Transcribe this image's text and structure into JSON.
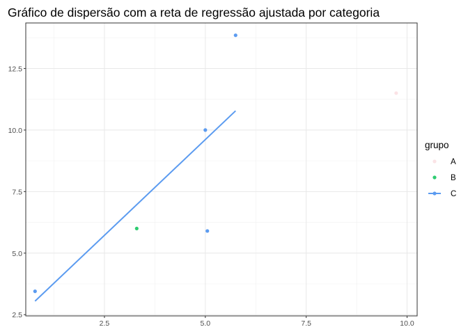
{
  "chart_data": {
    "type": "scatter",
    "title": "Gráfico de dispersão com a reta de regressão ajustada por categoria",
    "xlabel": "",
    "ylabel": "",
    "xlim": [
      0.55,
      10.25
    ],
    "ylim": [
      2.45,
      14.35
    ],
    "x_ticks": [
      2.5,
      5.0,
      7.5,
      10.0
    ],
    "x_tick_labels": [
      "2.5",
      "5.0",
      "7.5",
      "10.0"
    ],
    "y_ticks": [
      2.5,
      5.0,
      7.5,
      10.0,
      12.5
    ],
    "y_tick_labels": [
      "2.5",
      "5.0",
      "7.5",
      "10.0",
      "12.5"
    ],
    "grid": true,
    "legend": {
      "title": "grupo",
      "position": "right"
    },
    "series": [
      {
        "name": "A",
        "color": "#fbe3e6",
        "points": [
          {
            "x": 9.73,
            "y": 11.5
          }
        ],
        "fit": null
      },
      {
        "name": "B",
        "color": "#2ecc71",
        "points": [
          {
            "x": 3.3,
            "y": 6.0
          }
        ],
        "fit": null
      },
      {
        "name": "C",
        "color": "#5b9bf0",
        "points": [
          {
            "x": 0.78,
            "y": 3.45
          },
          {
            "x": 5.0,
            "y": 10.0
          },
          {
            "x": 5.05,
            "y": 5.9
          },
          {
            "x": 5.75,
            "y": 13.85
          }
        ],
        "fit": {
          "x": [
            0.78,
            5.75
          ],
          "y": [
            3.05,
            10.78
          ]
        }
      }
    ]
  }
}
